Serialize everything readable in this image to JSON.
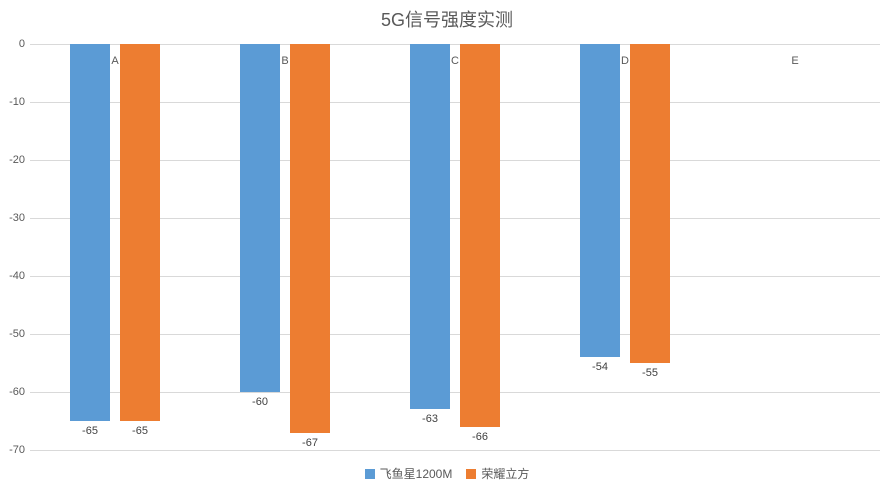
{
  "chart_data": {
    "type": "bar",
    "orientation": "vertical",
    "title": "5G信号强度实测",
    "categories": [
      "A",
      "B",
      "C",
      "D",
      "E"
    ],
    "series": [
      {
        "name": "飞鱼星1200M",
        "color": "#5B9BD5",
        "values": [
          -65,
          -60,
          -63,
          -54,
          null
        ]
      },
      {
        "name": "荣耀立方",
        "color": "#ED7D31",
        "values": [
          -65,
          -67,
          -66,
          -55,
          null
        ]
      }
    ],
    "ylim": [
      -70,
      0
    ],
    "yticks": [
      0,
      -10,
      -20,
      -30,
      -40,
      -50,
      -60,
      -70
    ],
    "grid": true,
    "legend_position": "bottom",
    "data_labels": true
  },
  "colors": {
    "background": "#FFFFFF",
    "gridline": "#D9D9D9",
    "axis_text": "#595959",
    "data_label_text": "#404040",
    "title_text": "#595959"
  }
}
